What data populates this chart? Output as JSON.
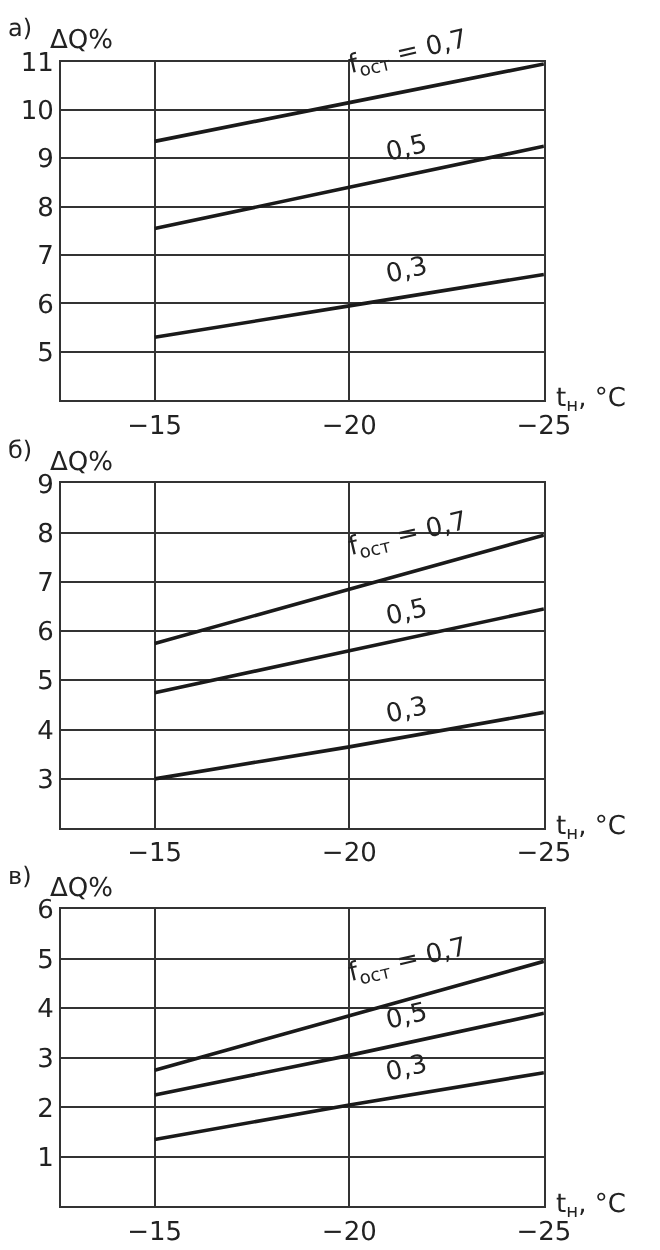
{
  "chart_data": [
    {
      "type": "line",
      "title": "а)",
      "ylabel": "ΔQ%",
      "xlabel": "t$_{н}$, °C",
      "x": [
        -15,
        -20,
        -25
      ],
      "xlim": [
        -12.6,
        -25
      ],
      "xticks": [
        {
          "value": -15,
          "label": "−15"
        },
        {
          "value": -20,
          "label": "−20"
        },
        {
          "value": -25,
          "label": "−25"
        }
      ],
      "ylim": [
        4,
        11
      ],
      "yticks": [
        5,
        6,
        7,
        8,
        9,
        10,
        11
      ],
      "grid": true,
      "legend": false,
      "marker": "none",
      "line_style": "solid",
      "series": [
        {
          "name": "f$_{ост}$ = 0,7",
          "color": "#1a1a1a",
          "values": [
            9.35,
            10.15,
            10.95
          ]
        },
        {
          "name": "0,5",
          "color": "#1a1a1a",
          "values": [
            7.55,
            8.4,
            9.25
          ]
        },
        {
          "name": "0,3",
          "color": "#1a1a1a",
          "values": [
            5.3,
            5.95,
            6.6
          ]
        }
      ]
    },
    {
      "type": "line",
      "title": "б)",
      "ylabel": "ΔQ%",
      "xlabel": "t$_{н}$, °C",
      "x": [
        -15,
        -20,
        -25
      ],
      "xlim": [
        -12.6,
        -25
      ],
      "xticks": [
        {
          "value": -15,
          "label": "−15"
        },
        {
          "value": -20,
          "label": "−20"
        },
        {
          "value": -25,
          "label": "−25"
        }
      ],
      "ylim": [
        2,
        9
      ],
      "yticks": [
        3,
        4,
        5,
        6,
        7,
        8,
        9
      ],
      "grid": true,
      "legend": false,
      "marker": "none",
      "line_style": "solid",
      "series": [
        {
          "name": "f$_{ост}$ = 0,7",
          "color": "#1a1a1a",
          "values": [
            5.75,
            6.85,
            7.95
          ]
        },
        {
          "name": "0,5",
          "color": "#1a1a1a",
          "values": [
            4.75,
            5.6,
            6.45
          ]
        },
        {
          "name": "0,3",
          "color": "#1a1a1a",
          "values": [
            3.0,
            3.65,
            4.35
          ]
        }
      ]
    },
    {
      "type": "line",
      "title": "в)",
      "ylabel": "ΔQ%",
      "xlabel": "t$_{н}$, °C",
      "x": [
        -15,
        -20,
        -25
      ],
      "xlim": [
        -12.6,
        -25
      ],
      "xticks": [
        {
          "value": -15,
          "label": "−15"
        },
        {
          "value": -20,
          "label": "−20"
        },
        {
          "value": -25,
          "label": "−25"
        }
      ],
      "ylim": [
        0,
        6
      ],
      "yticks": [
        1,
        2,
        3,
        4,
        5,
        6
      ],
      "grid": true,
      "legend": false,
      "marker": "none",
      "line_style": "solid",
      "series": [
        {
          "name": "f$_{ост}$ = 0,7",
          "color": "#1a1a1a",
          "values": [
            2.75,
            3.85,
            4.95
          ]
        },
        {
          "name": "0,5",
          "color": "#1a1a1a",
          "values": [
            2.25,
            3.05,
            3.9
          ]
        },
        {
          "name": "0,3",
          "color": "#1a1a1a",
          "values": [
            1.35,
            2.05,
            2.7
          ]
        }
      ]
    }
  ]
}
